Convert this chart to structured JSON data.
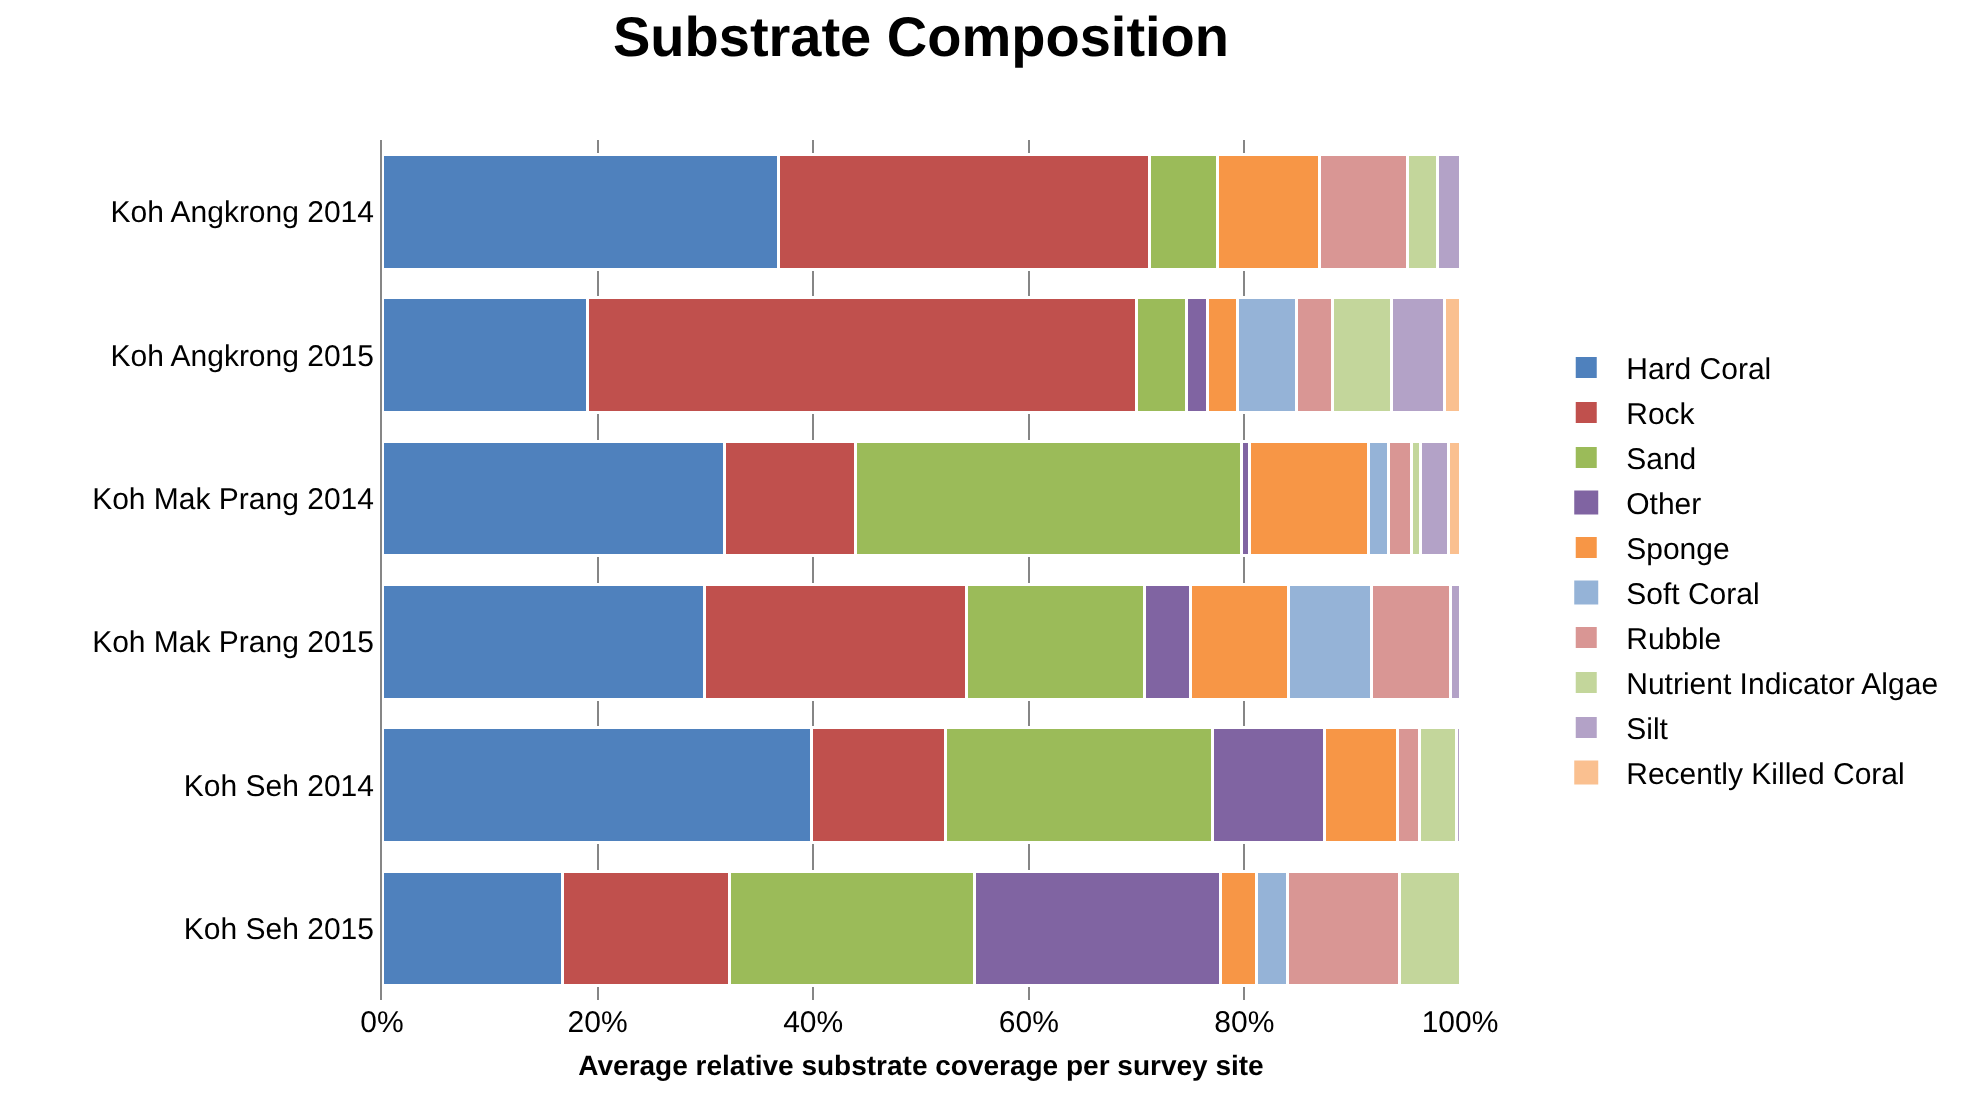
{
  "chart_data": {
    "type": "bar",
    "orientation": "horizontal",
    "stacked": true,
    "title": "Substrate Composition",
    "xlabel": "Average relative substrate coverage per survey site",
    "categories": [
      "Koh Angkrong 2014",
      "Koh Angkrong 2015",
      "Koh Mak Prang 2014",
      "Koh Mak Prang 2015",
      "Koh Seh 2014",
      "Koh Seh 2015"
    ],
    "series": [
      {
        "name": "Hard Coral",
        "color": "#4f81bd",
        "values": [
          36.8,
          19.1,
          31.8,
          29.9,
          39.8,
          16.7
        ]
      },
      {
        "name": "Rock",
        "color": "#c0504d",
        "values": [
          34.4,
          50.9,
          12.1,
          24.3,
          12.5,
          15.5
        ]
      },
      {
        "name": "Sand",
        "color": "#9bbb59",
        "values": [
          6.3,
          4.6,
          35.8,
          16.5,
          24.7,
          22.8
        ]
      },
      {
        "name": "Other",
        "color": "#8064a2",
        "values": [
          0,
          2.0,
          0.8,
          4.3,
          10.4,
          22.8
        ]
      },
      {
        "name": "Sponge",
        "color": "#f79646",
        "values": [
          9.5,
          2.8,
          11.0,
          9.1,
          6.8,
          3.3
        ]
      },
      {
        "name": "Soft Coral",
        "color": "#95b3d7",
        "values": [
          0,
          5.4,
          1.9,
          7.7,
          0,
          2.9
        ]
      },
      {
        "name": "Rubble",
        "color": "#d99694",
        "values": [
          8.1,
          3.4,
          2.1,
          7.3,
          2.0,
          10.4
        ]
      },
      {
        "name": "Nutrient Indicator Algae",
        "color": "#c3d69b",
        "values": [
          2.8,
          5.4,
          0.8,
          0,
          3.5,
          5.6
        ]
      },
      {
        "name": "Silt",
        "color": "#b3a2c7",
        "values": [
          2.1,
          5.0,
          2.6,
          0.9,
          0.3,
          0
        ]
      },
      {
        "name": "Recently Killed Coral",
        "color": "#fac090",
        "values": [
          0,
          1.4,
          1.1,
          0,
          0,
          0
        ]
      }
    ],
    "xlim": [
      0,
      100
    ],
    "xticks": [
      {
        "value": 0,
        "label": "0%"
      },
      {
        "value": 20,
        "label": "20%"
      },
      {
        "value": 40,
        "label": "40%"
      },
      {
        "value": 60,
        "label": "60%"
      },
      {
        "value": 80,
        "label": "80%"
      },
      {
        "value": 100,
        "label": "100%"
      }
    ],
    "grid": "x",
    "legend": "right"
  }
}
